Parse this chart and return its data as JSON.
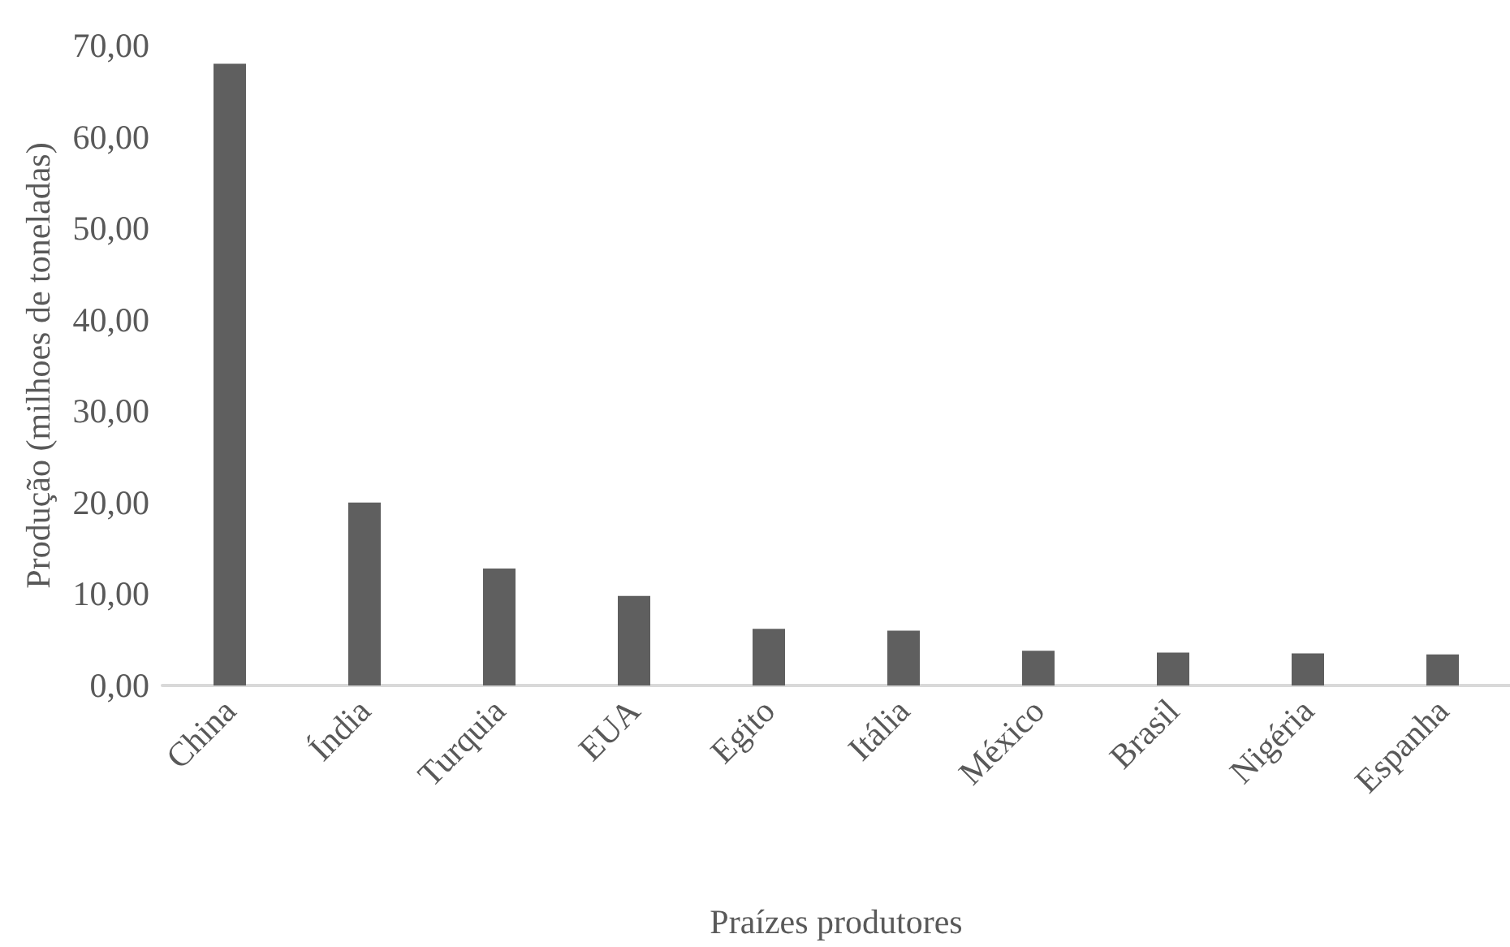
{
  "chart_data": {
    "type": "bar",
    "xlabel": "Praízes produtores",
    "ylabel": "Produção (milhoes de toneladas)",
    "categories": [
      "China",
      "Índia",
      "Turquia",
      "EUA",
      "Egito",
      "Itália",
      "México",
      "Brasil",
      "Nigéria",
      "Espanha"
    ],
    "values": [
      68.0,
      20.0,
      12.8,
      9.8,
      6.2,
      6.0,
      3.8,
      3.6,
      3.5,
      3.4
    ],
    "color": "#5f5f5f",
    "ylim": [
      0,
      70
    ],
    "yticks": [
      {
        "value": 0,
        "label": "0,00"
      },
      {
        "value": 10,
        "label": "10,00"
      },
      {
        "value": 20,
        "label": "20,00"
      },
      {
        "value": 30,
        "label": "30,00"
      },
      {
        "value": 40,
        "label": "40,00"
      },
      {
        "value": 50,
        "label": "50,00"
      },
      {
        "value": 60,
        "label": "60,00"
      },
      {
        "value": 70,
        "label": "70,00"
      }
    ],
    "grid": false
  }
}
